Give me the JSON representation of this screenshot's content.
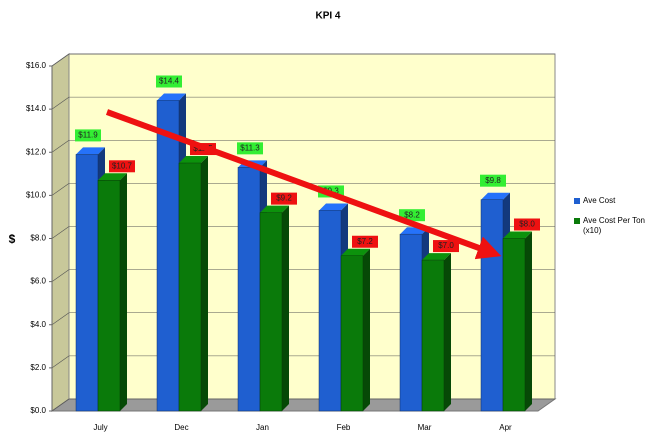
{
  "chart_data": {
    "type": "bar3d",
    "title": "KPI 4",
    "y_label": "$",
    "categories": [
      "July",
      "Dec",
      "Jan",
      "Feb",
      "Mar",
      "Apr"
    ],
    "series": [
      {
        "name": "Ave Cost",
        "color": "#1f5fd0",
        "label_color": "#33ee33",
        "values": [
          11.9,
          14.4,
          11.3,
          9.3,
          8.2,
          9.8
        ],
        "value_labels": [
          "$11.9",
          "$14.4",
          "$11.3",
          "$9.3",
          "$8.2",
          "$9.8"
        ]
      },
      {
        "name": "Ave Cost Per Ton (x10)",
        "color": "#0a7a0a",
        "label_color": "#ee1111",
        "values": [
          10.7,
          11.5,
          9.2,
          7.2,
          7.0,
          8.0
        ],
        "value_labels": [
          "$10.7",
          "$11.5",
          "$9.2",
          "$7.2",
          "$7.0",
          "$8.0"
        ]
      }
    ],
    "ylim": [
      0,
      16
    ],
    "yticks": [
      {
        "value": 0,
        "label": "$0.0"
      },
      {
        "value": 2,
        "label": "$2.0"
      },
      {
        "value": 4,
        "label": "$4.0"
      },
      {
        "value": 6,
        "label": "$6.0"
      },
      {
        "value": 8,
        "label": "$8.0"
      },
      {
        "value": 10,
        "label": "$10.0"
      },
      {
        "value": 12,
        "label": "$12.0"
      },
      {
        "value": 14,
        "label": "$14.0"
      },
      {
        "value": 16,
        "label": "$16.0"
      }
    ],
    "grid": true,
    "legend": "right"
  }
}
